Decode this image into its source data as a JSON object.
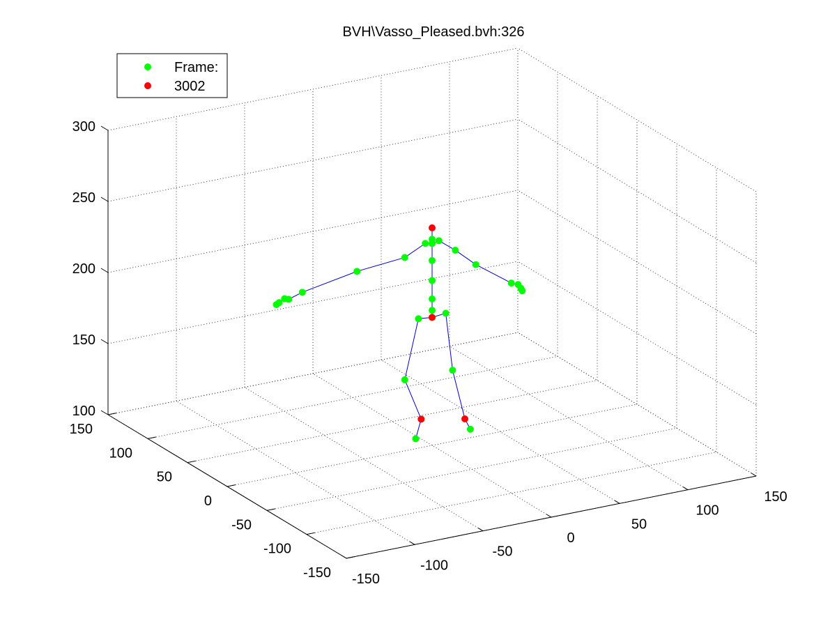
{
  "chart_data": {
    "type": "scatter",
    "title": "BVH\\Vasso_Pleased.bvh:326",
    "xlabel": "",
    "ylabel": "",
    "zlabel": "",
    "grid": true,
    "xlim": [
      -150,
      150
    ],
    "ylim": [
      -150,
      150
    ],
    "zlim": [
      100,
      300
    ],
    "x_ticks": [
      "-150",
      "-100",
      "-50",
      "0",
      "50",
      "100",
      "150"
    ],
    "y_ticks": [
      "-150",
      "-100",
      "-50",
      "0",
      "50",
      "100",
      "150"
    ],
    "z_ticks": [
      "100",
      "150",
      "200",
      "250",
      "300"
    ],
    "legend": {
      "position": "top-left",
      "entries": [
        {
          "label": "Frame:",
          "color": "#00ff00"
        },
        {
          "label": "3002",
          "color": "#ff0000"
        }
      ]
    },
    "colors": {
      "joint": "#00ff00",
      "end_site": "#ff0000",
      "bone": "#0000cc"
    },
    "series": [
      {
        "name": "Frame:",
        "points": [
          {
            "x": 0,
            "y": 0,
            "z": 190
          },
          {
            "x": -10,
            "y": 0,
            "z": 191
          },
          {
            "x": 10,
            "y": 0,
            "z": 191
          },
          {
            "x": -20,
            "y": 0,
            "z": 150
          },
          {
            "x": 15,
            "y": 0,
            "z": 150
          },
          {
            "x": -12,
            "y": 0,
            "z": 107
          },
          {
            "x": 28,
            "y": 0,
            "z": 106
          },
          {
            "x": 0,
            "y": 0,
            "z": 195
          },
          {
            "x": 0,
            "y": 0,
            "z": 203
          },
          {
            "x": 0,
            "y": 0,
            "z": 216
          },
          {
            "x": 0,
            "y": 0,
            "z": 230
          },
          {
            "x": 0,
            "y": 0,
            "z": 242
          },
          {
            "x": 0,
            "y": 0,
            "z": 245
          },
          {
            "x": -5,
            "y": 0,
            "z": 243
          },
          {
            "x": 5,
            "y": 0,
            "z": 243
          },
          {
            "x": -20,
            "y": 0,
            "z": 236
          },
          {
            "x": -55,
            "y": 0,
            "z": 233
          },
          {
            "x": -95,
            "y": 0,
            "z": 226
          },
          {
            "x": -105,
            "y": 0,
            "z": 223
          },
          {
            "x": -108,
            "y": 0,
            "z": 224
          },
          {
            "x": -112,
            "y": 0,
            "z": 222
          },
          {
            "x": -114,
            "y": 0,
            "z": 221
          },
          {
            "x": 17,
            "y": 0,
            "z": 234
          },
          {
            "x": 32,
            "y": 0,
            "z": 221
          },
          {
            "x": 58,
            "y": 0,
            "z": 203
          },
          {
            "x": 63,
            "y": 0,
            "z": 201
          },
          {
            "x": 65,
            "y": 0,
            "z": 198
          },
          {
            "x": 66,
            "y": 0,
            "z": 196
          }
        ]
      },
      {
        "name": "3002",
        "points": [
          {
            "x": 0,
            "y": 0,
            "z": 253
          },
          {
            "x": -8,
            "y": 0,
            "z": 120
          },
          {
            "x": 24,
            "y": 0,
            "z": 114
          },
          {
            "x": 0,
            "y": 0,
            "z": 190
          }
        ]
      }
    ]
  }
}
